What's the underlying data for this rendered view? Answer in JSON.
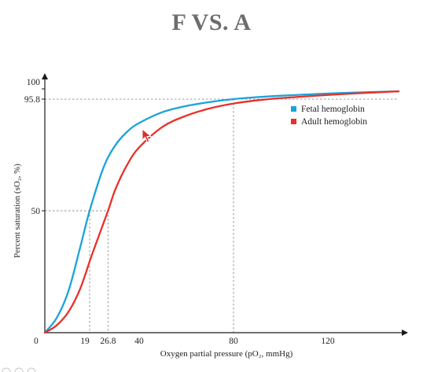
{
  "slide": {
    "title": "F VS. A"
  },
  "colors": {
    "fetal": "#1ba3d9",
    "adult": "#e8302a",
    "guide": "#8f8f8f",
    "axis": "#1a1a1a"
  },
  "chart_data": {
    "type": "line",
    "title": "",
    "xlabel": "Oxygen partial pressure (pO₂, mmHg)",
    "ylabel": "Percent saturation (sO₂, %)",
    "xlim": [
      0,
      150
    ],
    "ylim": [
      0,
      100
    ],
    "x_ticks": [
      0,
      19,
      26.8,
      40,
      80,
      120
    ],
    "x_tick_labels": [
      "0",
      "19",
      "26.8",
      "40",
      "80",
      "120"
    ],
    "y_ticks": [
      50,
      95.8,
      100
    ],
    "y_tick_labels": [
      "50",
      "95.8",
      "100"
    ],
    "legend": {
      "position": "top-right"
    },
    "grid": false,
    "series": [
      {
        "name": "Fetal hemoglobin",
        "color": "#1ba3d9",
        "x": [
          0,
          5,
          10,
          15,
          19,
          25,
          30,
          35,
          40,
          50,
          60,
          70,
          80,
          90,
          100,
          120,
          135,
          150
        ],
        "y": [
          0,
          6,
          17,
          35,
          50,
          68,
          77,
          82.5,
          86,
          90.5,
          93,
          94.6,
          95.8,
          96.6,
          97.2,
          98.1,
          98.6,
          99
        ]
      },
      {
        "name": "Adult hemoglobin",
        "color": "#e8302a",
        "x": [
          0,
          5,
          10,
          15,
          20,
          26.8,
          30,
          35,
          40,
          50,
          60,
          70,
          80,
          90,
          100,
          120,
          135,
          150
        ],
        "y": [
          0,
          3,
          8.5,
          18,
          32,
          50,
          59,
          69,
          76,
          84.5,
          89,
          92,
          94,
          95.3,
          96.2,
          97.5,
          98.3,
          99
        ]
      }
    ],
    "reference_lines": [
      {
        "x": 19,
        "y": 50,
        "series": "Fetal hemoglobin"
      },
      {
        "x": 26.8,
        "y": 50,
        "series": "Adult hemoglobin"
      },
      {
        "x": 80,
        "y": 95.8
      }
    ]
  }
}
